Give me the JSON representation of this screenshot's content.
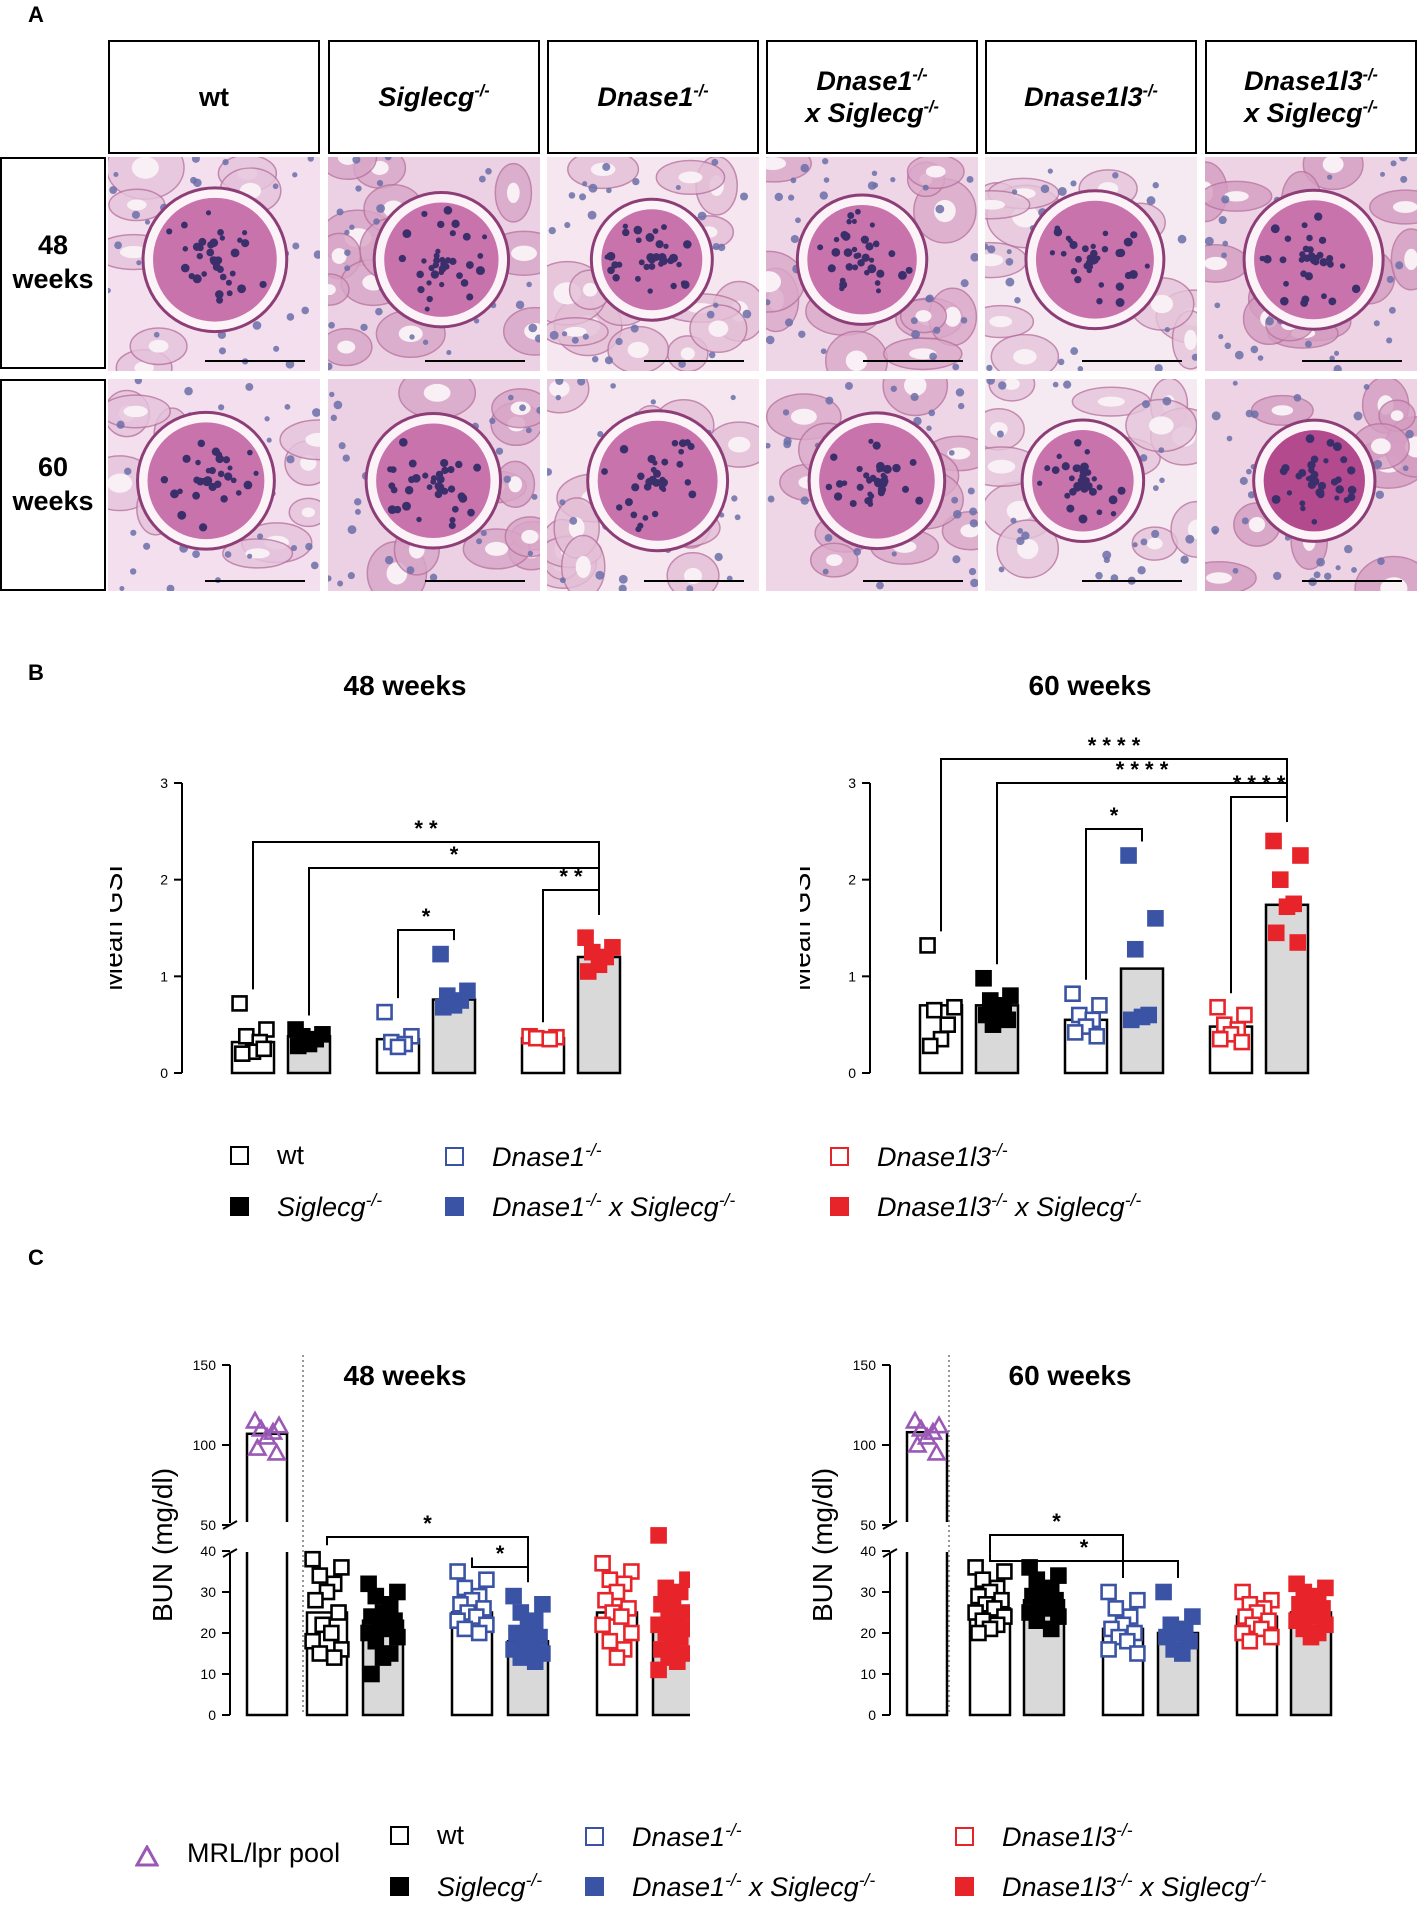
{
  "panels": {
    "a": "A",
    "b": "B",
    "c": "C"
  },
  "histology": {
    "columns": [
      {
        "line1": "wt",
        "line2": "",
        "sup1": "",
        "sup2": ""
      },
      {
        "line1": "Siglecg",
        "sup1": "-/-",
        "line2": "",
        "sup2": ""
      },
      {
        "line1": "Dnase1",
        "sup1": "-/-",
        "line2": "",
        "sup2": ""
      },
      {
        "line1": "Dnase1",
        "sup1": "-/-",
        "line2": "x Siglecg",
        "sup2": "-/-"
      },
      {
        "line1": "Dnase1l3",
        "sup1": "-/-",
        "line2": "",
        "sup2": ""
      },
      {
        "line1": "Dnase1l3",
        "sup1": "-/-",
        "line2": "x Siglecg",
        "sup2": "-/-"
      }
    ],
    "rows": [
      {
        "line1": "48",
        "line2": "weeks"
      },
      {
        "line1": "60",
        "line2": "weeks"
      }
    ]
  },
  "legend_groups": {
    "wt": "wt",
    "siglecg": "Siglecg",
    "dnase1": "Dnase1",
    "dnase1_siglecg_a": "Dnase1",
    "dnase1_siglecg_b": " x Siglecg",
    "dnase1l3": "Dnase1l3",
    "dnase1l3_siglecg_a": "Dnase1l3",
    "dnase1l3_siglecg_b": " x Siglecg",
    "sup": "-/-",
    "mrl": "MRL/lpr pool"
  },
  "colors": {
    "black": "#000000",
    "blue": "#3a53a4",
    "red": "#e8242b",
    "purple": "#9b59b6",
    "bar_gray": "#d9d9d9"
  },
  "chart_data": [
    {
      "type": "bar",
      "panel": "B",
      "title": "48 weeks",
      "ylabel": "Mean GSI",
      "ylim": [
        0,
        3
      ],
      "yticks": [
        0,
        1,
        2,
        3
      ],
      "series": [
        {
          "name": "wt",
          "mean": 0.32,
          "points": [
            0.72,
            0.45,
            0.38,
            0.32,
            0.22,
            0.2,
            0.25
          ]
        },
        {
          "name": "Siglecg-/-",
          "mean": 0.38,
          "points": [
            0.45,
            0.4,
            0.38,
            0.35,
            0.3,
            0.28
          ]
        },
        {
          "name": "Dnase1-/-",
          "mean": 0.35,
          "points": [
            0.63,
            0.38,
            0.32,
            0.3,
            0.27
          ]
        },
        {
          "name": "Dnase1-/- x Siglecg-/-",
          "mean": 0.76,
          "points": [
            1.23,
            0.85,
            0.8,
            0.75,
            0.7,
            0.68
          ]
        },
        {
          "name": "Dnase1l3-/-",
          "mean": 0.36,
          "points": [
            0.38,
            0.37,
            0.36,
            0.35
          ]
        },
        {
          "name": "Dnase1l3-/- x Siglecg-/-",
          "mean": 1.2,
          "points": [
            1.4,
            1.3,
            1.25,
            1.2,
            1.12,
            1.05
          ]
        }
      ],
      "significance": [
        {
          "from": 0,
          "to": 5,
          "label": "* *"
        },
        {
          "from": 1,
          "to": 5,
          "label": "*"
        },
        {
          "from": 2,
          "to": 3,
          "label": "*"
        },
        {
          "from": 4,
          "to": 5,
          "label": "* *"
        }
      ]
    },
    {
      "type": "bar",
      "panel": "B",
      "title": "60 weeks",
      "ylabel": "Mean GSI",
      "ylim": [
        0,
        3
      ],
      "yticks": [
        0,
        1,
        2,
        3
      ],
      "series": [
        {
          "name": "wt",
          "mean": 0.7,
          "points": [
            1.32,
            0.68,
            0.65,
            0.5,
            0.35,
            0.28
          ]
        },
        {
          "name": "Siglecg-/-",
          "mean": 0.7,
          "points": [
            0.98,
            0.8,
            0.75,
            0.7,
            0.65,
            0.6,
            0.55,
            0.5
          ]
        },
        {
          "name": "Dnase1-/-",
          "mean": 0.55,
          "points": [
            0.82,
            0.7,
            0.6,
            0.55,
            0.48,
            0.42,
            0.38
          ]
        },
        {
          "name": "Dnase1-/- x Siglecg-/-",
          "mean": 1.08,
          "points": [
            2.25,
            1.6,
            1.28,
            0.6,
            0.58,
            0.55
          ]
        },
        {
          "name": "Dnase1l3-/-",
          "mean": 0.48,
          "points": [
            0.68,
            0.6,
            0.5,
            0.45,
            0.4,
            0.35,
            0.32
          ]
        },
        {
          "name": "Dnase1l3-/- x Siglecg-/-",
          "mean": 1.74,
          "points": [
            2.4,
            2.25,
            2.0,
            1.75,
            1.72,
            1.45,
            1.35
          ]
        }
      ],
      "significance": [
        {
          "from": 0,
          "to": 5,
          "label": "* * * *"
        },
        {
          "from": 1,
          "to": 5,
          "label": "* * * *"
        },
        {
          "from": 2,
          "to": 3,
          "label": "*"
        },
        {
          "from": 4,
          "to": 5,
          "label": "* * * *"
        }
      ]
    },
    {
      "type": "bar",
      "panel": "C",
      "title": "48 weeks",
      "ylabel": "BUN (mg/dl)",
      "ylim": [
        0,
        150
      ],
      "yticks": [
        0,
        10,
        20,
        30,
        40,
        50,
        100,
        150
      ],
      "axis_break": [
        40,
        50
      ],
      "reference": {
        "name": "MRL/lpr pool",
        "mean": 107,
        "points": [
          115,
          112,
          110,
          108,
          105,
          98,
          95
        ]
      },
      "series": [
        {
          "name": "wt",
          "mean": 25,
          "points": [
            38,
            36,
            34,
            32,
            30,
            28,
            25,
            22,
            20,
            18,
            16,
            15,
            14
          ]
        },
        {
          "name": "Siglecg-/-",
          "mean": 23,
          "points": [
            32,
            30,
            29,
            27,
            25,
            24,
            23,
            22,
            21,
            20,
            19,
            18,
            15,
            14,
            10
          ]
        },
        {
          "name": "Dnase1-/-",
          "mean": 25,
          "points": [
            35,
            33,
            31,
            29,
            28,
            27,
            26,
            25,
            24,
            23,
            22,
            21,
            20
          ]
        },
        {
          "name": "Dnase1-/- x Siglecg-/-",
          "mean": 18,
          "points": [
            29,
            27,
            25,
            23,
            22,
            20,
            19,
            18,
            17,
            16,
            15,
            14,
            13
          ]
        },
        {
          "name": "Dnase1l3-/-",
          "mean": 25,
          "points": [
            37,
            35,
            33,
            32,
            30,
            28,
            26,
            25,
            24,
            22,
            20,
            18,
            16,
            14
          ]
        },
        {
          "name": "Dnase1l3-/- x Siglecg-/-",
          "mean": 22,
          "points": [
            46,
            33,
            31,
            30,
            28,
            27,
            25,
            24,
            23,
            22,
            21,
            20,
            19,
            18,
            16,
            15,
            14,
            13,
            11
          ]
        }
      ],
      "significance": [
        {
          "from": 0,
          "to": 3,
          "label": "*"
        },
        {
          "from": 2,
          "to": 3,
          "label": "*"
        }
      ]
    },
    {
      "type": "bar",
      "panel": "C",
      "title": "60 weeks",
      "ylabel": "BUN (mg/dl)",
      "ylim": [
        0,
        150
      ],
      "yticks": [
        0,
        10,
        20,
        30,
        40,
        50,
        100,
        150
      ],
      "axis_break": [
        40,
        50
      ],
      "reference": {
        "name": "MRL/lpr pool",
        "mean": 108,
        "points": [
          115,
          112,
          110,
          108,
          105,
          100,
          95
        ]
      },
      "series": [
        {
          "name": "wt",
          "mean": 26,
          "points": [
            36,
            35,
            33,
            31,
            30,
            29,
            28,
            27,
            26,
            25,
            24,
            23,
            22,
            21,
            20
          ]
        },
        {
          "name": "Siglecg-/-",
          "mean": 28,
          "points": [
            36,
            34,
            33,
            31,
            30,
            29,
            28,
            27,
            26,
            25,
            24,
            23,
            21
          ]
        },
        {
          "name": "Dnase1-/-",
          "mean": 21,
          "points": [
            30,
            28,
            26,
            24,
            22,
            21,
            20,
            19,
            18,
            16,
            15
          ]
        },
        {
          "name": "Dnase1-/- x Siglecg-/-",
          "mean": 20,
          "points": [
            30,
            24,
            22,
            21,
            20,
            19,
            18,
            16,
            15
          ]
        },
        {
          "name": "Dnase1l3-/-",
          "mean": 24,
          "points": [
            30,
            28,
            27,
            26,
            25,
            24,
            23,
            22,
            21,
            20,
            19,
            18
          ]
        },
        {
          "name": "Dnase1l3-/- x Siglecg-/-",
          "mean": 25,
          "points": [
            32,
            31,
            30,
            29,
            28,
            27,
            26,
            25,
            24,
            23,
            22,
            21,
            20,
            19
          ]
        }
      ],
      "significance": [
        {
          "from": 0,
          "to": 2,
          "label": "*"
        },
        {
          "from": 0,
          "to": 3,
          "label": "*"
        }
      ]
    }
  ]
}
